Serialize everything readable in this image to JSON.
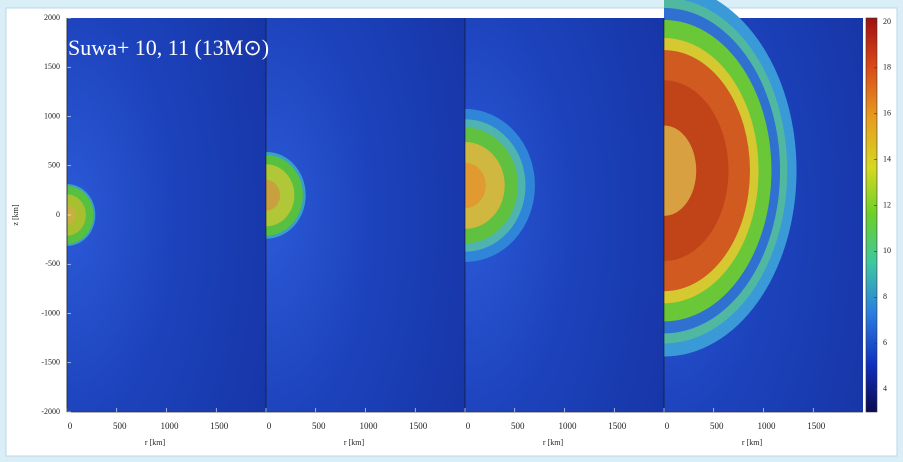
{
  "chart_data": [
    {
      "type": "heatmap",
      "title": "Suwa+ 10, 11 (13M⊙)",
      "xlabel": "r [km]",
      "ylabel": "z [km]",
      "xlim": [
        0,
        2000
      ],
      "xticks": [
        0,
        500,
        1000,
        1500
      ],
      "ylim": [
        -2000,
        2000
      ],
      "yticks": [
        2000,
        1500,
        1000,
        500,
        0,
        -500,
        -1000,
        -1500,
        -2000
      ]
    },
    {
      "type": "heatmap",
      "xlabel": "r [km]",
      "xlim": [
        0,
        2000
      ],
      "xticks": [
        0,
        500,
        1000,
        1500
      ]
    },
    {
      "type": "heatmap",
      "xlabel": "r [km]",
      "xlim": [
        0,
        2000
      ],
      "xticks": [
        0,
        500,
        1000,
        1500
      ]
    },
    {
      "type": "heatmap",
      "xlabel": "r [km]",
      "xlim": [
        0,
        2000
      ],
      "xticks": [
        0,
        500,
        1000,
        1500
      ]
    },
    {
      "type": "colorbar",
      "clim": [
        3,
        20
      ],
      "cticks": [
        20,
        18,
        16,
        14,
        12,
        10,
        8,
        6,
        4
      ]
    }
  ]
}
